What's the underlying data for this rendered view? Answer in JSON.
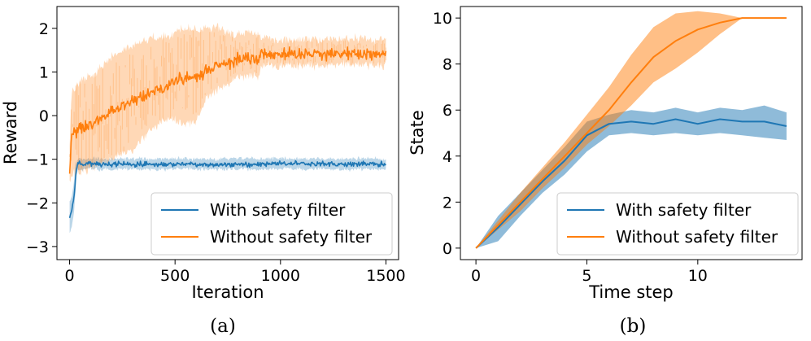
{
  "colors": {
    "blue": "#1f77b4",
    "orange": "#ff7f0e"
  },
  "chart_data": [
    {
      "type": "line",
      "caption": "(a)",
      "xlabel": "Iteration",
      "ylabel": "Reward",
      "xlim": [
        -60,
        1560
      ],
      "ylim": [
        -3.3,
        2.5
      ],
      "xticks": [
        0,
        500,
        1000,
        1500
      ],
      "yticks": [
        2,
        1,
        0,
        -1,
        -2,
        -3
      ],
      "xtick_labels": [
        "0",
        "500",
        "1000",
        "1500"
      ],
      "ytick_labels": [
        "2",
        "1",
        "0",
        "−1",
        "−2",
        "−3"
      ],
      "legend_position": "lower-right",
      "series": [
        {
          "name": "With safety filter",
          "color_key": "blue",
          "x": [
            0,
            10,
            20,
            30,
            40,
            60,
            100,
            200,
            300,
            400,
            500,
            600,
            700,
            800,
            900,
            1000,
            1100,
            1200,
            1300,
            1400,
            1500
          ],
          "y": [
            -2.35,
            -2.2,
            -1.9,
            -1.3,
            -1.1,
            -1.12,
            -1.1,
            -1.12,
            -1.1,
            -1.12,
            -1.1,
            -1.11,
            -1.12,
            -1.1,
            -1.12,
            -1.1,
            -1.11,
            -1.1,
            -1.12,
            -1.1,
            -1.12
          ],
          "noise": 0.05,
          "band_half_width": 0.12
        },
        {
          "name": "Without safety filter",
          "color_key": "orange",
          "x": [
            0,
            10,
            50,
            100,
            150,
            200,
            250,
            300,
            350,
            400,
            450,
            500,
            550,
            600,
            650,
            700,
            750,
            800,
            850,
            900,
            910,
            1000,
            1100,
            1200,
            1300,
            1400,
            1500
          ],
          "y": [
            -1.3,
            -0.4,
            -0.3,
            -0.2,
            -0.05,
            0.1,
            0.2,
            0.35,
            0.45,
            0.55,
            0.65,
            0.8,
            0.85,
            0.85,
            1.05,
            1.15,
            1.2,
            1.3,
            1.3,
            1.3,
            1.42,
            1.42,
            1.43,
            1.42,
            1.43,
            1.42,
            1.42
          ],
          "noise": 0.12,
          "band_upper": [
            -0.7,
            0.6,
            0.8,
            0.9,
            1.1,
            1.4,
            1.5,
            1.6,
            1.7,
            1.8,
            1.8,
            1.9,
            2.0,
            2.0,
            2.0,
            2.0,
            1.9,
            1.9,
            1.9,
            1.9,
            1.75,
            1.75,
            1.75,
            1.75,
            1.75,
            1.75,
            1.75
          ],
          "band_lower": [
            -1.5,
            -1.3,
            -1.3,
            -1.2,
            -1.1,
            -1.0,
            -0.9,
            -0.8,
            -0.5,
            -0.3,
            -0.1,
            -0.1,
            -0.2,
            -0.1,
            0.4,
            0.6,
            0.7,
            0.9,
            0.9,
            0.9,
            1.15,
            1.15,
            1.15,
            1.15,
            1.15,
            1.15,
            1.15
          ]
        }
      ]
    },
    {
      "type": "line",
      "caption": "(b)",
      "xlabel": "Time step",
      "ylabel": "State",
      "xlim": [
        -0.7,
        14.7
      ],
      "ylim": [
        -0.5,
        10.5
      ],
      "xticks": [
        0,
        5,
        10
      ],
      "yticks": [
        0,
        2,
        4,
        6,
        8,
        10
      ],
      "xtick_labels": [
        "0",
        "5",
        "10"
      ],
      "ytick_labels": [
        "0",
        "2",
        "4",
        "6",
        "8",
        "10"
      ],
      "legend_position": "lower-right",
      "series": [
        {
          "name": "With safety filter",
          "color_key": "blue",
          "x": [
            0,
            1,
            2,
            3,
            4,
            5,
            6,
            7,
            8,
            9,
            10,
            11,
            12,
            13,
            14
          ],
          "y": [
            0,
            0.9,
            1.9,
            2.9,
            3.8,
            4.9,
            5.4,
            5.5,
            5.4,
            5.6,
            5.4,
            5.6,
            5.5,
            5.5,
            5.3
          ],
          "upper": [
            0,
            1.4,
            2.4,
            3.4,
            4.4,
            5.5,
            5.8,
            6.0,
            5.9,
            6.1,
            5.9,
            6.1,
            6.0,
            6.2,
            5.9
          ],
          "lower": [
            0,
            0.3,
            1.4,
            2.4,
            3.2,
            4.2,
            4.9,
            5.0,
            4.9,
            5.0,
            4.9,
            5.0,
            4.9,
            4.8,
            4.7
          ]
        },
        {
          "name": "Without safety filter",
          "color_key": "orange",
          "x": [
            0,
            1,
            2,
            3,
            4,
            5,
            6,
            7,
            8,
            9,
            10,
            11,
            12,
            13,
            14
          ],
          "y": [
            0,
            1.0,
            2.0,
            3.0,
            4.0,
            5.0,
            6.0,
            7.2,
            8.3,
            9.0,
            9.5,
            9.8,
            10.0,
            10.0,
            10.0
          ],
          "upper": [
            0,
            1.2,
            2.4,
            3.5,
            4.6,
            5.8,
            7.0,
            8.4,
            9.6,
            10.2,
            10.3,
            10.2,
            10.0,
            10.0,
            10.0
          ],
          "lower": [
            0,
            0.8,
            1.6,
            2.6,
            3.5,
            4.5,
            5.3,
            6.2,
            7.2,
            7.8,
            8.5,
            9.3,
            10.0,
            10.0,
            10.0
          ]
        }
      ]
    }
  ]
}
